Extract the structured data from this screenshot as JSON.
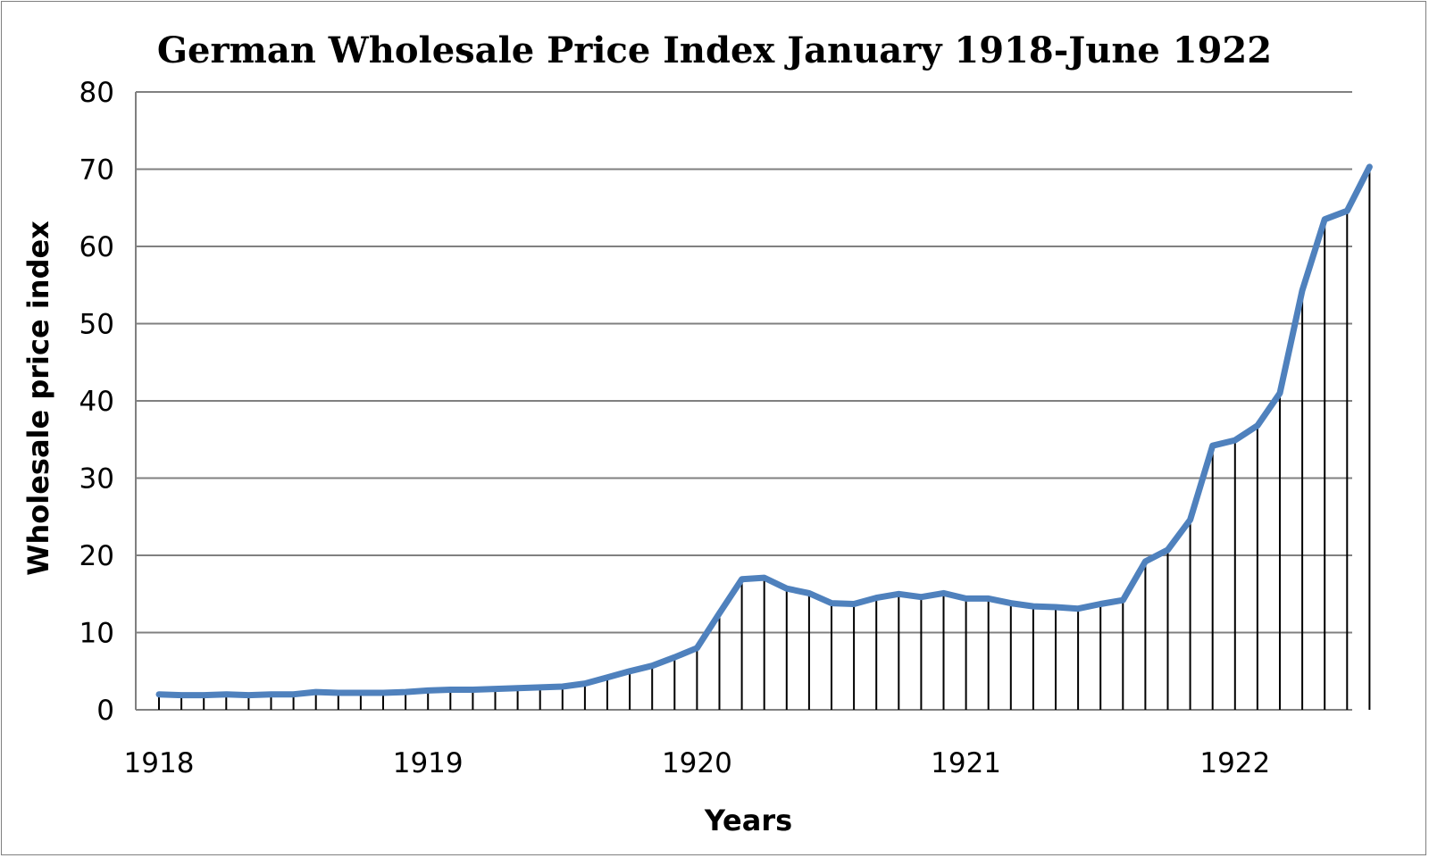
{
  "chart_data": {
    "type": "line",
    "title": "German Wholesale Price Index January 1918-June 1922",
    "xlabel": "Years",
    "ylabel": "Wholesale price index",
    "ylim": [
      0,
      80
    ],
    "yticks": [
      0,
      10,
      20,
      30,
      40,
      50,
      60,
      70,
      80
    ],
    "xticks": [
      "1918",
      "1919",
      "1920",
      "1921",
      "1922"
    ],
    "grid": true,
    "drop_lines": true,
    "series": [
      {
        "name": "Wholesale price index",
        "color": "#4f81bd",
        "values": [
          2.0,
          1.9,
          1.9,
          2.0,
          1.9,
          2.0,
          2.0,
          2.3,
          2.2,
          2.2,
          2.2,
          2.3,
          2.5,
          2.6,
          2.6,
          2.7,
          2.8,
          2.9,
          3.0,
          3.4,
          4.2,
          5.0,
          5.7,
          6.8,
          8.0,
          12.5,
          16.9,
          17.1,
          15.7,
          15.1,
          13.8,
          13.7,
          14.5,
          15.0,
          14.6,
          15.1,
          14.4,
          14.4,
          13.8,
          13.4,
          13.3,
          13.1,
          13.7,
          14.2,
          19.2,
          20.7,
          24.6,
          34.2,
          34.9,
          36.8,
          41.0,
          54.3,
          63.5,
          64.6,
          70.3
        ]
      }
    ]
  }
}
